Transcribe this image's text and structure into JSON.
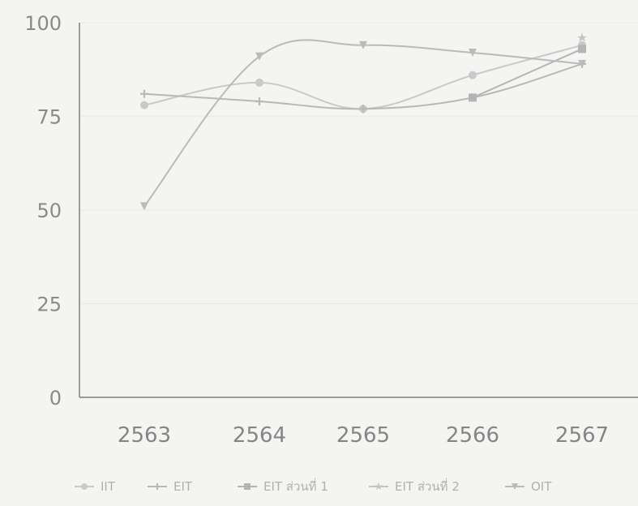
{
  "chart_data": {
    "type": "line",
    "categories": [
      "2563",
      "2564",
      "2565",
      "2566",
      "2567"
    ],
    "y_ticks": [
      "0",
      "25",
      "50",
      "75",
      "100"
    ],
    "ylim": [
      0,
      100
    ],
    "grid": true,
    "legend_position": "bottom",
    "series": [
      {
        "name": "IIT",
        "values": [
          78,
          84,
          77,
          86,
          94
        ],
        "color": "#c9c9c9",
        "marker": "circle"
      },
      {
        "name": "EIT",
        "values": [
          81,
          79,
          77,
          80,
          89
        ],
        "color": "#b8b8b8",
        "marker": "plus"
      },
      {
        "name": "EIT ส่วนที่ 1",
        "values": [
          null,
          null,
          null,
          80,
          93
        ],
        "color": "#b4b4b4",
        "marker": "square"
      },
      {
        "name": "EIT ส่วนที่ 2",
        "values": [
          null,
          null,
          null,
          null,
          96
        ],
        "color": "#c4c4c4",
        "marker": "star"
      },
      {
        "name": "OIT",
        "values": [
          51,
          91,
          94,
          92,
          89
        ],
        "color": "#bababa",
        "marker": "triangle"
      }
    ]
  }
}
